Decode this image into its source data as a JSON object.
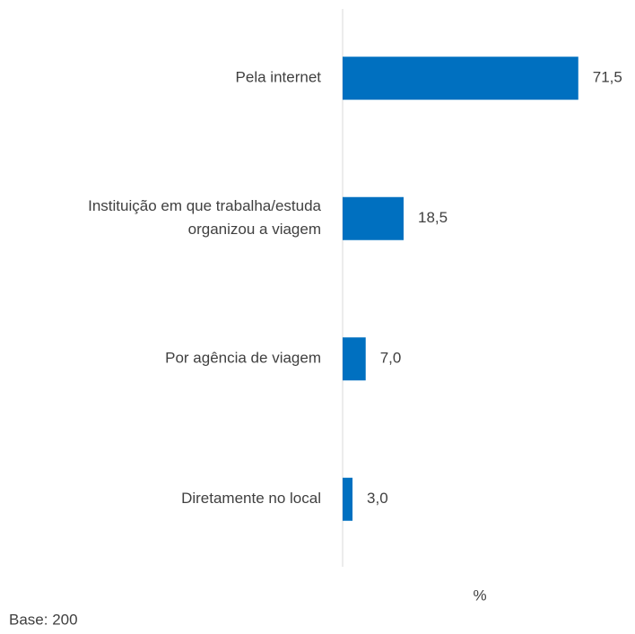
{
  "chart_data": {
    "type": "barh",
    "categories": [
      "Pela internet",
      "Instituição em que trabalha/estuda\norganizou a viagem",
      "Por agência de viagem",
      "Diretamente no local"
    ],
    "values": [
      71.5,
      18.5,
      7.0,
      3.0
    ],
    "value_labels": [
      "71,5",
      "18,5",
      "7,0",
      "3,0"
    ],
    "color": "#0070c0",
    "xlim": [
      0,
      80
    ],
    "xlabel": "%",
    "note": "Base: 200"
  }
}
